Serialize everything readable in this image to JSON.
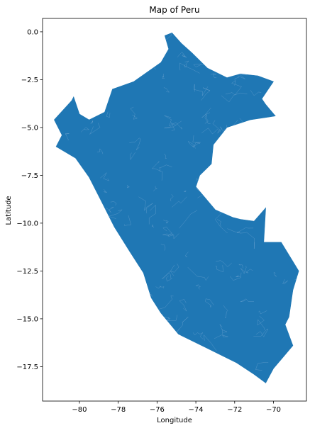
{
  "chart_data": {
    "type": "map",
    "title": "Map of Peru",
    "xlabel": "Longitude",
    "ylabel": "Latitude",
    "xlim": [
      -81.9,
      -68.3
    ],
    "ylim": [
      -19.3,
      0.7
    ],
    "x_ticks": [
      -80,
      -78,
      -76,
      -74,
      -72,
      -70
    ],
    "x_tick_labels": [
      "−80",
      "−78",
      "−76",
      "−74",
      "−72",
      "−70"
    ],
    "y_ticks": [
      0.0,
      -2.5,
      -5.0,
      -7.5,
      -10.0,
      -12.5,
      -15.0,
      -17.5
    ],
    "y_tick_labels": [
      "0.0",
      "−2.5",
      "−5.0",
      "−7.5",
      "−10.0",
      "−12.5",
      "−15.0",
      "−17.5"
    ],
    "grid": false,
    "fill_color": "#1f77b4",
    "boundary_color": "#aec7e8",
    "regions": [
      {
        "name": "Peru",
        "outline": [
          [
            -75.23,
            -0.05
          ],
          [
            -74.75,
            -0.6
          ],
          [
            -74.2,
            -1.1
          ],
          [
            -73.4,
            -1.9
          ],
          [
            -72.4,
            -2.4
          ],
          [
            -71.7,
            -2.2
          ],
          [
            -70.8,
            -2.3
          ],
          [
            -70.0,
            -2.6
          ],
          [
            -70.6,
            -3.5
          ],
          [
            -70.4,
            -3.8
          ],
          [
            -69.9,
            -4.4
          ],
          [
            -71.2,
            -4.6
          ],
          [
            -72.4,
            -5.0
          ],
          [
            -73.1,
            -5.9
          ],
          [
            -73.2,
            -6.9
          ],
          [
            -73.8,
            -7.5
          ],
          [
            -74.0,
            -8.1
          ],
          [
            -73.0,
            -9.3
          ],
          [
            -72.1,
            -9.7
          ],
          [
            -71.7,
            -9.8
          ],
          [
            -71.0,
            -9.9
          ],
          [
            -70.4,
            -9.2
          ],
          [
            -70.5,
            -11.0
          ],
          [
            -69.6,
            -11.0
          ],
          [
            -69.0,
            -12.0
          ],
          [
            -68.7,
            -12.5
          ],
          [
            -69.0,
            -13.5
          ],
          [
            -69.2,
            -14.9
          ],
          [
            -69.4,
            -15.3
          ],
          [
            -69.0,
            -16.4
          ],
          [
            -69.5,
            -17.0
          ],
          [
            -70.0,
            -17.6
          ],
          [
            -70.4,
            -18.35
          ],
          [
            -71.0,
            -17.9
          ],
          [
            -71.9,
            -17.3
          ],
          [
            -73.5,
            -16.5
          ],
          [
            -74.9,
            -15.8
          ],
          [
            -75.8,
            -14.7
          ],
          [
            -76.3,
            -13.9
          ],
          [
            -76.7,
            -12.6
          ],
          [
            -77.4,
            -11.5
          ],
          [
            -78.2,
            -10.2
          ],
          [
            -78.9,
            -8.8
          ],
          [
            -79.5,
            -7.6
          ],
          [
            -80.2,
            -6.6
          ],
          [
            -81.2,
            -6.0
          ],
          [
            -80.9,
            -5.4
          ],
          [
            -81.3,
            -4.6
          ],
          [
            -80.4,
            -3.6
          ],
          [
            -80.3,
            -3.4
          ],
          [
            -80.0,
            -4.3
          ],
          [
            -79.5,
            -4.6
          ],
          [
            -78.7,
            -4.2
          ],
          [
            -78.3,
            -3.0
          ],
          [
            -77.2,
            -2.6
          ],
          [
            -75.8,
            -1.6
          ],
          [
            -75.4,
            -0.9
          ],
          [
            -75.6,
            -0.2
          ],
          [
            -75.23,
            -0.05
          ]
        ]
      }
    ]
  }
}
